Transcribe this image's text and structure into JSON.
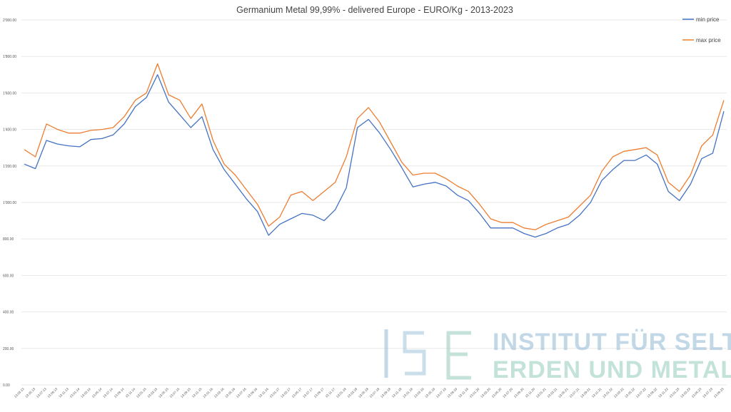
{
  "chart_data": {
    "type": "line",
    "title": "Germanium Metal 99,99% - delivered Europe - EURO/Kg  - 2013-2023",
    "xlabel": "",
    "ylabel": "",
    "ylim": [
      0,
      2000
    ],
    "y_ticks": [
      "0.00",
      "200.00",
      "400.00",
      "600.00",
      "800.00",
      "1'000.00",
      "1'200.00",
      "1'400.00",
      "1'600.00",
      "1'800.00",
      "2'000.00"
    ],
    "x_ticks": [
      "13.03.13",
      "13.05.13",
      "13.07.13",
      "13.09.13",
      "13.11.13",
      "13.01.14",
      "13.03.14",
      "13.05.14",
      "13.07.14",
      "13.09.14",
      "13.11.14",
      "13.01.15",
      "13.03.15",
      "13.05.15",
      "13.07.15",
      "13.09.15",
      "13.11.15",
      "13.01.16",
      "13.03.16",
      "13.05.16",
      "13.07.16",
      "13.09.16",
      "13.11.16",
      "13.01.17",
      "13.03.17",
      "13.05.17",
      "13.07.17",
      "13.09.17",
      "13.11.17",
      "13.01.18",
      "13.03.18",
      "13.05.18",
      "13.07.18",
      "13.09.18",
      "13.11.18",
      "13.01.19",
      "13.03.19",
      "13.05.19",
      "13.07.19",
      "13.09.19",
      "13.11.19",
      "13.01.20",
      "13.03.20",
      "13.05.20",
      "13.07.20",
      "13.09.20",
      "13.11.20",
      "13.01.21",
      "13.03.21",
      "13.05.21",
      "13.07.21",
      "13.09.21",
      "13.11.21",
      "13.01.22",
      "13.03.22",
      "13.05.22",
      "13.07.22",
      "13.09.22",
      "13.11.22",
      "13.01.23",
      "13.03.23",
      "13.05.23",
      "13.07.23",
      "13.09.23"
    ],
    "x": [
      "2013-03",
      "2013-05",
      "2013-07",
      "2013-09",
      "2013-11",
      "2014-01",
      "2014-03",
      "2014-05",
      "2014-07",
      "2014-09",
      "2014-11",
      "2015-01",
      "2015-03",
      "2015-05",
      "2015-07",
      "2015-09",
      "2015-11",
      "2016-01",
      "2016-03",
      "2016-05",
      "2016-07",
      "2016-09",
      "2016-11",
      "2017-01",
      "2017-03",
      "2017-05",
      "2017-07",
      "2017-09",
      "2017-11",
      "2018-01",
      "2018-03",
      "2018-05",
      "2018-07",
      "2018-09",
      "2018-11",
      "2019-01",
      "2019-03",
      "2019-05",
      "2019-07",
      "2019-09",
      "2019-11",
      "2020-01",
      "2020-03",
      "2020-05",
      "2020-07",
      "2020-09",
      "2020-11",
      "2021-01",
      "2021-03",
      "2021-05",
      "2021-07",
      "2021-09",
      "2021-11",
      "2022-01",
      "2022-03",
      "2022-05",
      "2022-07",
      "2022-09",
      "2022-11",
      "2023-01",
      "2023-03",
      "2023-05",
      "2023-07",
      "2023-09"
    ],
    "series": [
      {
        "name": "min price",
        "color": "#4472c4",
        "values": [
          1210,
          1185,
          1340,
          1320,
          1310,
          1305,
          1345,
          1350,
          1370,
          1430,
          1525,
          1575,
          1700,
          1550,
          1480,
          1410,
          1470,
          1290,
          1180,
          1100,
          1020,
          950,
          820,
          880,
          910,
          940,
          930,
          900,
          960,
          1080,
          1410,
          1455,
          1380,
          1290,
          1190,
          1085,
          1100,
          1110,
          1090,
          1040,
          1010,
          940,
          860,
          860,
          860,
          830,
          810,
          830,
          860,
          880,
          930,
          1000,
          1120,
          1180,
          1230,
          1230,
          1260,
          1210,
          1060,
          1010,
          1100,
          1240,
          1270,
          1500
        ]
      },
      {
        "name": "max price",
        "color": "#ed7d31",
        "values": [
          1290,
          1250,
          1430,
          1400,
          1380,
          1380,
          1395,
          1400,
          1410,
          1470,
          1560,
          1600,
          1760,
          1590,
          1560,
          1460,
          1540,
          1340,
          1210,
          1150,
          1070,
          990,
          870,
          920,
          1040,
          1060,
          1010,
          1060,
          1110,
          1250,
          1460,
          1520,
          1440,
          1330,
          1220,
          1150,
          1160,
          1160,
          1130,
          1090,
          1060,
          990,
          910,
          890,
          890,
          860,
          850,
          880,
          900,
          920,
          980,
          1040,
          1170,
          1250,
          1280,
          1290,
          1300,
          1260,
          1110,
          1060,
          1150,
          1310,
          1370,
          1560
        ]
      }
    ],
    "legend_position": "top-right",
    "grid": true
  },
  "watermark": {
    "logo_text": "ISE",
    "line1": "INSTITUT FÜR SELTENE",
    "line2": "ERDEN UND METALLE AG"
  }
}
